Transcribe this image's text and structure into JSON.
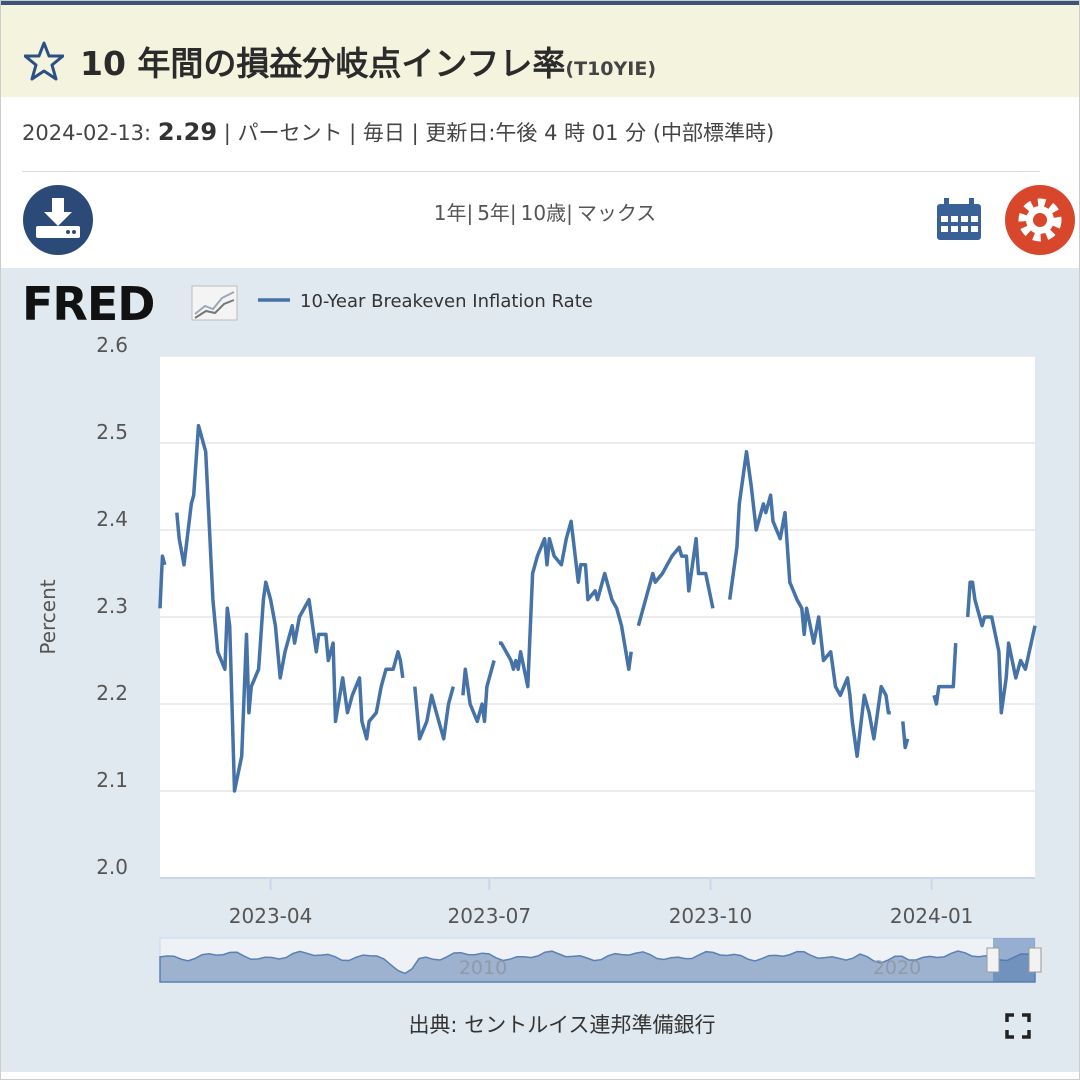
{
  "header": {
    "title": "10 年間の損益分岐点インフレ率",
    "code": "(T10YIE)"
  },
  "info": {
    "date": "2024-02-13:",
    "value": "2.29",
    "rest": "| パーセント | 毎日 | 更新日:午後 4 時 01 分 (中部標準時)"
  },
  "ranges": [
    "1年|",
    "5年|",
    "10歳|",
    "マックス"
  ],
  "logo": "FRED",
  "navigator": {
    "labels": [
      "2010",
      "2020"
    ]
  },
  "source": "出典: セントルイス連邦準備銀行",
  "chart_data": {
    "type": "line",
    "ylabel": "Percent",
    "xlim": [
      "2023-02-14",
      "2024-02-13"
    ],
    "xticks": [
      {
        "value": "2023-04-01",
        "label": "2023-04"
      },
      {
        "value": "2023-07-01",
        "label": "2023-07"
      },
      {
        "value": "2023-10-01",
        "label": "2023-10"
      },
      {
        "value": "2024-01-01",
        "label": "2024-01"
      }
    ],
    "ylim": [
      2.0,
      2.6
    ],
    "yticks": [
      {
        "value": 2.0,
        "label": "2.0"
      },
      2.1,
      2.2,
      2.3,
      2.4,
      2.5,
      2.6
    ],
    "grid": true,
    "x": [
      "2023-02-14",
      "2023-02-15",
      "2023-02-16",
      "2023-02-20",
      "2023-02-21",
      "2023-02-22",
      "2023-02-24",
      "2023-02-27",
      "2023-02-28",
      "2023-03-02",
      "2023-03-05",
      "2023-03-08",
      "2023-03-10",
      "2023-03-13",
      "2023-03-14",
      "2023-03-15",
      "2023-03-17",
      "2023-03-20",
      "2023-03-22",
      "2023-03-23",
      "2023-03-24",
      "2023-03-27",
      "2023-03-29",
      "2023-03-30",
      "2023-04-01",
      "2023-04-03",
      "2023-04-05",
      "2023-04-07",
      "2023-04-10",
      "2023-04-11",
      "2023-04-13",
      "2023-04-17",
      "2023-04-19",
      "2023-04-20",
      "2023-04-21",
      "2023-04-24",
      "2023-04-25",
      "2023-04-27",
      "2023-04-28",
      "2023-05-01",
      "2023-05-03",
      "2023-05-05",
      "2023-05-08",
      "2023-05-09",
      "2023-05-11",
      "2023-05-12",
      "2023-05-15",
      "2023-05-17",
      "2023-05-19",
      "2023-05-22",
      "2023-05-24",
      "2023-05-25",
      "2023-05-26",
      "2023-05-29",
      "2023-05-31",
      "2023-06-02",
      "2023-06-05",
      "2023-06-07",
      "2023-06-09",
      "2023-06-12",
      "2023-06-14",
      "2023-06-16",
      "2023-06-19",
      "2023-06-20",
      "2023-06-21",
      "2023-06-23",
      "2023-06-26",
      "2023-06-28",
      "2023-06-29",
      "2023-06-30",
      "2023-07-03",
      "2023-07-04",
      "2023-07-05",
      "2023-07-06",
      "2023-07-10",
      "2023-07-11",
      "2023-07-12",
      "2023-07-13",
      "2023-07-14",
      "2023-07-17",
      "2023-07-19",
      "2023-07-21",
      "2023-07-24",
      "2023-07-25",
      "2023-07-26",
      "2023-07-28",
      "2023-07-31",
      "2023-08-02",
      "2023-08-04",
      "2023-08-07",
      "2023-08-08",
      "2023-08-10",
      "2023-08-11",
      "2023-08-14",
      "2023-08-15",
      "2023-08-17",
      "2023-08-18",
      "2023-08-21",
      "2023-08-23",
      "2023-08-25",
      "2023-08-28",
      "2023-08-29",
      "2023-08-31",
      "2023-09-01",
      "2023-09-05",
      "2023-09-07",
      "2023-09-08",
      "2023-09-11",
      "2023-09-13",
      "2023-09-15",
      "2023-09-18",
      "2023-09-19",
      "2023-09-21",
      "2023-09-22",
      "2023-09-25",
      "2023-09-26",
      "2023-09-29",
      "2023-10-02",
      "2023-10-05",
      "2023-10-09",
      "2023-10-10",
      "2023-10-12",
      "2023-10-13",
      "2023-10-16",
      "2023-10-18",
      "2023-10-20",
      "2023-10-23",
      "2023-10-24",
      "2023-10-26",
      "2023-10-27",
      "2023-10-30",
      "2023-11-01",
      "2023-11-03",
      "2023-11-06",
      "2023-11-08",
      "2023-11-09",
      "2023-11-10",
      "2023-11-13",
      "2023-11-15",
      "2023-11-17",
      "2023-11-20",
      "2023-11-22",
      "2023-11-24",
      "2023-11-27",
      "2023-11-28",
      "2023-11-29",
      "2023-12-01",
      "2023-12-04",
      "2023-12-06",
      "2023-12-08",
      "2023-12-11",
      "2023-12-13",
      "2023-12-14",
      "2023-12-15",
      "2023-12-18",
      "2023-12-20",
      "2023-12-21",
      "2023-12-22",
      "2023-12-27",
      "2024-01-02",
      "2024-01-03",
      "2024-01-04",
      "2024-01-10",
      "2024-01-11",
      "2024-01-15",
      "2024-01-16",
      "2024-01-17",
      "2024-01-18",
      "2024-01-19",
      "2024-01-22",
      "2024-01-23",
      "2024-01-24",
      "2024-01-26",
      "2024-01-29",
      "2024-01-30",
      "2024-02-01",
      "2024-02-02",
      "2024-02-05",
      "2024-02-07",
      "2024-02-09",
      "2024-02-13"
    ],
    "series": [
      {
        "name": "10-Year Breakeven Inflation Rate",
        "color": "#4572a7",
        "values": [
          2.31,
          2.37,
          2.36,
          null,
          2.42,
          2.39,
          2.36,
          2.43,
          2.44,
          2.52,
          2.49,
          2.32,
          2.26,
          2.24,
          2.31,
          2.29,
          2.1,
          2.14,
          2.28,
          2.19,
          2.22,
          2.24,
          2.32,
          2.34,
          2.32,
          2.29,
          2.23,
          2.26,
          2.29,
          2.27,
          2.3,
          2.32,
          2.28,
          2.26,
          2.28,
          2.28,
          2.25,
          2.27,
          2.18,
          2.23,
          2.19,
          2.21,
          2.23,
          2.18,
          2.16,
          2.18,
          2.19,
          2.22,
          2.24,
          2.24,
          2.26,
          2.25,
          2.23,
          null,
          2.22,
          2.16,
          2.18,
          2.21,
          2.19,
          2.16,
          2.2,
          2.22,
          null,
          2.21,
          2.24,
          2.2,
          2.18,
          2.2,
          2.18,
          2.22,
          2.25,
          null,
          2.27,
          2.27,
          2.25,
          2.24,
          2.25,
          2.24,
          2.26,
          2.22,
          2.35,
          2.37,
          2.39,
          2.36,
          2.39,
          2.37,
          2.36,
          2.39,
          2.41,
          2.34,
          2.36,
          2.36,
          2.32,
          2.33,
          2.32,
          2.34,
          2.35,
          2.32,
          2.31,
          2.29,
          2.24,
          2.26,
          null,
          2.29,
          2.33,
          2.35,
          2.34,
          2.35,
          2.36,
          2.37,
          2.38,
          2.37,
          2.37,
          2.33,
          2.39,
          2.35,
          2.35,
          2.31,
          null,
          2.32,
          2.34,
          2.38,
          2.43,
          2.49,
          2.45,
          2.4,
          2.43,
          2.42,
          2.44,
          2.41,
          2.39,
          2.42,
          2.34,
          2.32,
          2.31,
          2.28,
          2.31,
          2.27,
          2.3,
          2.25,
          2.26,
          2.22,
          2.21,
          2.23,
          2.21,
          2.18,
          2.14,
          2.21,
          2.19,
          2.16,
          2.22,
          2.21,
          2.19,
          2.19,
          null,
          2.18,
          2.15,
          2.16,
          null,
          2.21,
          2.2,
          2.22,
          2.22,
          2.27,
          null,
          2.3,
          2.34,
          2.34,
          2.32,
          2.29,
          2.3,
          2.3,
          2.3,
          2.26,
          2.19,
          2.23,
          2.27,
          2.23,
          2.25,
          2.24,
          2.29
        ]
      }
    ]
  }
}
